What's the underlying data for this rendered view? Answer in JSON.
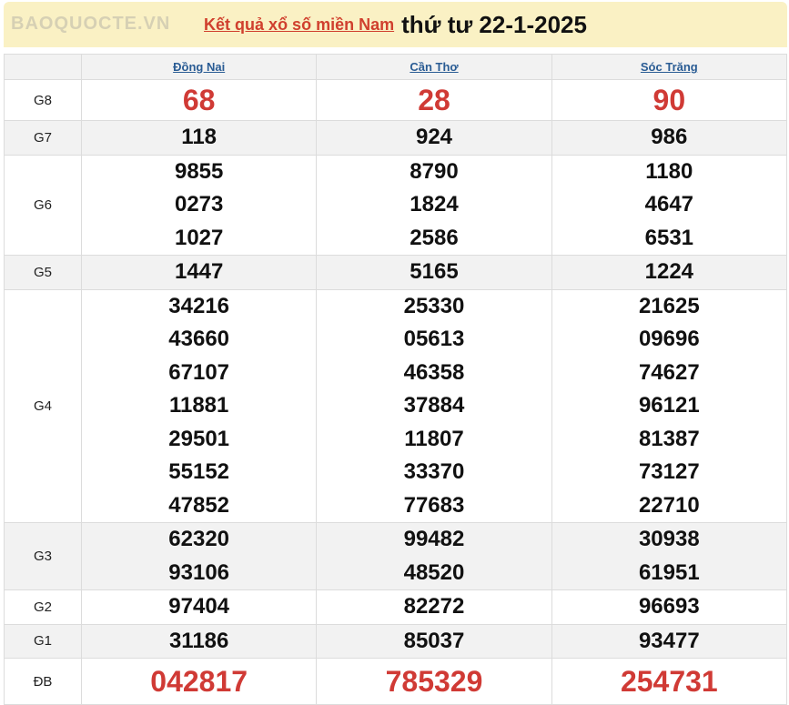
{
  "header": {
    "link": "Kết quả xổ số miền Nam",
    "date": "thứ tư 22-1-2025"
  },
  "provinces": [
    "Đồng Nai",
    "Cần Thơ",
    "Sóc Trăng"
  ],
  "rows": [
    {
      "label": "G8",
      "values": [
        [
          "68"
        ],
        [
          "28"
        ],
        [
          "90"
        ]
      ]
    },
    {
      "label": "G7",
      "values": [
        [
          "118"
        ],
        [
          "924"
        ],
        [
          "986"
        ]
      ]
    },
    {
      "label": "G6",
      "values": [
        [
          "9855",
          "0273",
          "1027"
        ],
        [
          "8790",
          "1824",
          "2586"
        ],
        [
          "1180",
          "4647",
          "6531"
        ]
      ]
    },
    {
      "label": "G5",
      "values": [
        [
          "1447"
        ],
        [
          "5165"
        ],
        [
          "1224"
        ]
      ]
    },
    {
      "label": "G4",
      "values": [
        [
          "34216",
          "43660",
          "67107",
          "11881",
          "29501",
          "55152",
          "47852"
        ],
        [
          "25330",
          "05613",
          "46358",
          "37884",
          "11807",
          "33370",
          "77683"
        ],
        [
          "21625",
          "09696",
          "74627",
          "96121",
          "81387",
          "73127",
          "22710"
        ]
      ]
    },
    {
      "label": "G3",
      "values": [
        [
          "62320",
          "93106"
        ],
        [
          "99482",
          "48520"
        ],
        [
          "30938",
          "61951"
        ]
      ]
    },
    {
      "label": "G2",
      "values": [
        [
          "97404"
        ],
        [
          "82272"
        ],
        [
          "96693"
        ]
      ]
    },
    {
      "label": "G1",
      "values": [
        [
          "31186"
        ],
        [
          "85037"
        ],
        [
          "93477"
        ]
      ]
    },
    {
      "label": "ĐB",
      "values": [
        [
          "042817"
        ],
        [
          "785329"
        ],
        [
          "254731"
        ]
      ]
    }
  ],
  "watermark": "BAOQUOCTE.VN",
  "colors": {
    "banner": "#faf1c4",
    "highlight": "#d03a35",
    "link": "#2a5c94"
  }
}
